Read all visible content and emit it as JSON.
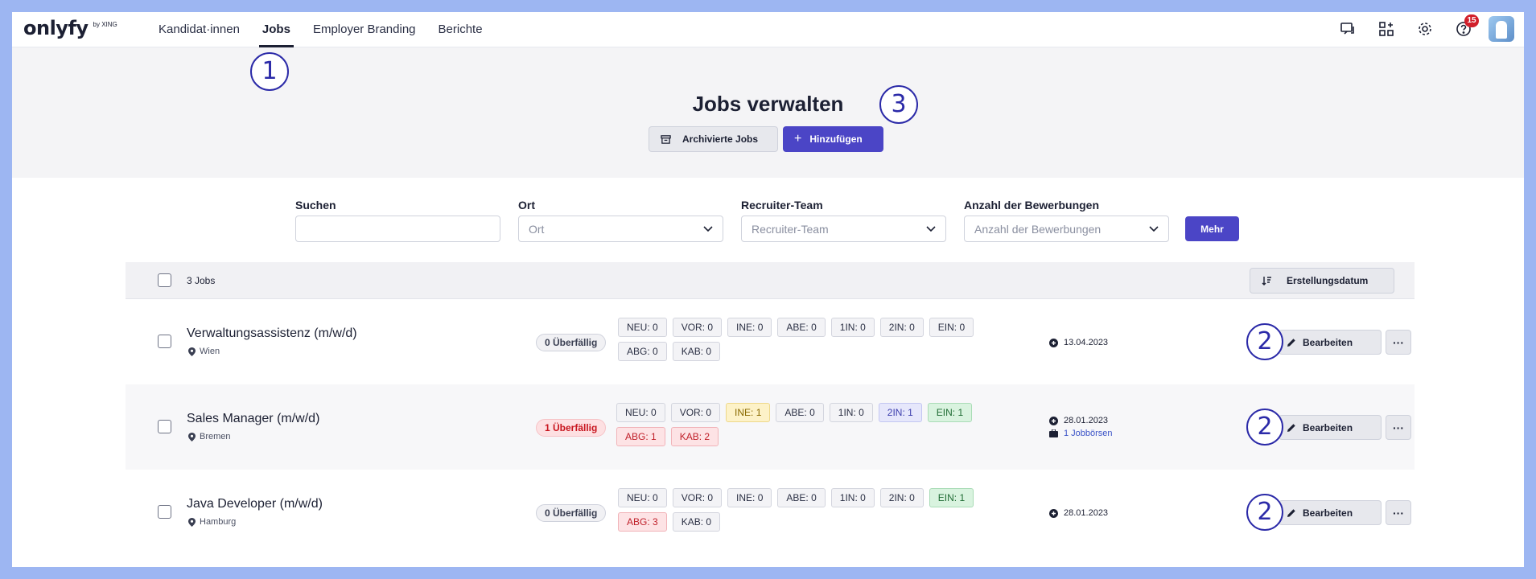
{
  "brand": {
    "logo": "onlyfy",
    "sub": "by XING"
  },
  "nav": [
    {
      "label": "Kandidat·innen",
      "active": false
    },
    {
      "label": "Jobs",
      "active": true
    },
    {
      "label": "Employer Branding",
      "active": false
    },
    {
      "label": "Berichte",
      "active": false
    }
  ],
  "top_icons": [
    "chat-icon",
    "apps-add-icon",
    "gear-icon",
    "help-icon"
  ],
  "notifications_count": "15",
  "page_title": "Jobs verwalten",
  "buttons": {
    "archived": "Archivierte Jobs",
    "add": "Hinzufügen",
    "more": "Mehr"
  },
  "annotations": {
    "nav_step": "1",
    "add_step": "3",
    "edit_step": "2"
  },
  "filters": {
    "search": {
      "label": "Suchen",
      "placeholder": ""
    },
    "location": {
      "label": "Ort",
      "placeholder": "Ort"
    },
    "team": {
      "label": "Recruiter-Team",
      "placeholder": "Recruiter-Team"
    },
    "applications": {
      "label": "Anzahl der Bewerbungen",
      "placeholder": "Anzahl der Bewerbungen"
    }
  },
  "table": {
    "count_label": "3 Jobs",
    "sort_label": "Erstellungsdatum",
    "edit_label": "Bearbeiten",
    "more_label": "···",
    "rows": [
      {
        "title": "Verwaltungsassistenz (m/w/d)",
        "location": "Wien",
        "overdue": "0 Überfällig",
        "overdue_alert": false,
        "stats": [
          {
            "label": "NEU: 0",
            "tone": "default"
          },
          {
            "label": "VOR: 0",
            "tone": "default"
          },
          {
            "label": "INE: 0",
            "tone": "default"
          },
          {
            "label": "ABE: 0",
            "tone": "default"
          },
          {
            "label": "1IN: 0",
            "tone": "default"
          },
          {
            "label": "2IN: 0",
            "tone": "default"
          },
          {
            "label": "EIN: 0",
            "tone": "default"
          },
          {
            "label": "ABG: 0",
            "tone": "default"
          },
          {
            "label": "KAB: 0",
            "tone": "default"
          }
        ],
        "date": "13.04.2023",
        "jobboards": ""
      },
      {
        "title": "Sales Manager (m/w/d)",
        "location": "Bremen",
        "overdue": "1 Überfällig",
        "overdue_alert": true,
        "stats": [
          {
            "label": "NEU: 0",
            "tone": "default"
          },
          {
            "label": "VOR: 0",
            "tone": "default"
          },
          {
            "label": "INE: 1",
            "tone": "yellow"
          },
          {
            "label": "ABE: 0",
            "tone": "default"
          },
          {
            "label": "1IN: 0",
            "tone": "default"
          },
          {
            "label": "2IN: 1",
            "tone": "purple"
          },
          {
            "label": "EIN: 1",
            "tone": "green"
          },
          {
            "label": "ABG: 1",
            "tone": "red"
          },
          {
            "label": "KAB: 2",
            "tone": "red"
          }
        ],
        "date": "28.01.2023",
        "jobboards": "1 Jobbörsen"
      },
      {
        "title": "Java Developer (m/w/d)",
        "location": "Hamburg",
        "overdue": "0 Überfällig",
        "overdue_alert": false,
        "stats": [
          {
            "label": "NEU: 0",
            "tone": "default"
          },
          {
            "label": "VOR: 0",
            "tone": "default"
          },
          {
            "label": "INE: 0",
            "tone": "default"
          },
          {
            "label": "ABE: 0",
            "tone": "default"
          },
          {
            "label": "1IN: 0",
            "tone": "default"
          },
          {
            "label": "2IN: 0",
            "tone": "default"
          },
          {
            "label": "EIN: 1",
            "tone": "green"
          },
          {
            "label": "ABG: 3",
            "tone": "red"
          },
          {
            "label": "KAB: 0",
            "tone": "default"
          }
        ],
        "date": "28.01.2023",
        "jobboards": ""
      }
    ]
  },
  "colors": {
    "primary": "#4b45c6",
    "frame": "#9db6f2",
    "annotation": "#2b2aa8",
    "alert": "#c8161f"
  }
}
